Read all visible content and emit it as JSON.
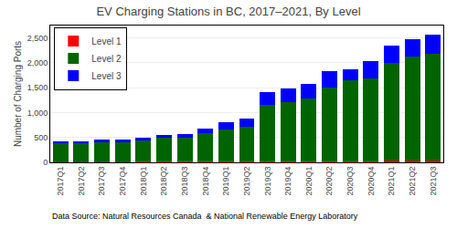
{
  "chart_data": {
    "type": "bar",
    "stacked": true,
    "title": "EV Charging Stations in BC, 2017–2021, By Level",
    "ylabel": "Number of Charging Ports",
    "annotations": [
      "Data Source: Natural Resources Canada  & National Renewable Energy Laboratory"
    ],
    "categories": [
      "2017Q1",
      "2017Q2",
      "2017Q3",
      "2017Q4",
      "2018Q1",
      "2018Q2",
      "2018Q3",
      "2018Q4",
      "2019Q1",
      "2019Q2",
      "2019Q3",
      "2019Q4",
      "2020Q1",
      "2020Q2",
      "2020Q3",
      "2020Q4",
      "2021Q1",
      "2021Q2",
      "2021Q3"
    ],
    "series": [
      {
        "name": "Level 1",
        "color": "#ff0000",
        "values": [
          8,
          8,
          8,
          8,
          15,
          15,
          15,
          15,
          18,
          18,
          18,
          18,
          25,
          25,
          25,
          25,
          35,
          35,
          45
        ]
      },
      {
        "name": "Level 2",
        "color": "#006400",
        "values": [
          380,
          378,
          398,
          400,
          425,
          475,
          488,
          575,
          645,
          695,
          1130,
          1185,
          1260,
          1475,
          1625,
          1670,
          1960,
          2090,
          2140
        ]
      },
      {
        "name": "Level 3",
        "color": "#0000ff",
        "values": [
          42,
          42,
          48,
          48,
          62,
          62,
          68,
          80,
          145,
          170,
          255,
          275,
          285,
          335,
          225,
          335,
          345,
          355,
          385
        ]
      }
    ],
    "ylim": [
      0,
      2750
    ],
    "yticks": [
      0,
      500,
      {
        "value": 1000,
        "label": "1,000"
      },
      {
        "value": 1500,
        "label": "1,500"
      },
      {
        "value": 2000,
        "label": "2,000"
      },
      {
        "value": 2500,
        "label": "2,500"
      }
    ],
    "grid": true,
    "legend": "upper left"
  }
}
